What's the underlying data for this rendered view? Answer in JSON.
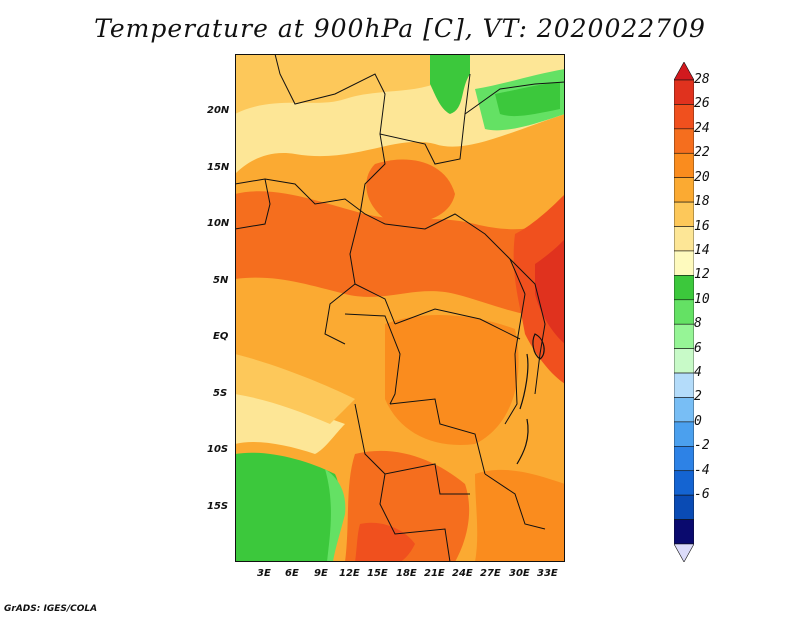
{
  "title": "Temperature at 900hPa [C], VT: 2020022709",
  "credit": "GrADS: IGES/COLA",
  "lat_labels": [
    "20N",
    "15N",
    "10N",
    "5N",
    "EQ",
    "5S",
    "10S",
    "15S"
  ],
  "lon_labels": [
    "3E",
    "6E",
    "9E",
    "12E",
    "15E",
    "18E",
    "21E",
    "24E",
    "27E",
    "30E",
    "33E"
  ],
  "colorbar": {
    "labels": [
      "28",
      "26",
      "24",
      "22",
      "20",
      "18",
      "16",
      "14",
      "12",
      "10",
      "8",
      "6",
      "4",
      "2",
      "0",
      "-2",
      "-4",
      "-6"
    ],
    "colors": [
      "#e0321e",
      "#f0501e",
      "#f56e1e",
      "#fa8c1e",
      "#fbaa32",
      "#fdc85a",
      "#fde696",
      "#fefabe",
      "#3cc83c",
      "#64e164",
      "#96f596",
      "#c8fac8",
      "#b4dcfa",
      "#78bef5",
      "#4ba0ee",
      "#2d82e6",
      "#1464d2",
      "#0a4bb4",
      "#0a0a6e"
    ],
    "top_arrow_color": "#d2191e",
    "bottom_arrow_color": "#dcdcfa"
  },
  "legend": {
    "palette": {
      "warm_hot": "#f0501e",
      "warm": "#fa8c1e",
      "mild": "#fbaa32",
      "cool": "#fde696",
      "green": "#3cc83c",
      "light_green": "#64e164"
    }
  }
}
